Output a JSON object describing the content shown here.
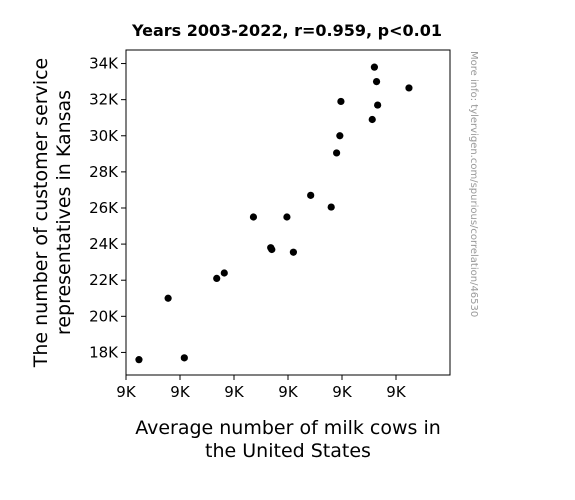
{
  "chart_data": {
    "type": "scatter",
    "title": "Years 2003-2022, r=0.959, p<0.01",
    "xlabel_lines": [
      "Average number of milk cows in",
      "the United States"
    ],
    "ylabel_lines": [
      "The number of customer service",
      "representatives in Kansas"
    ],
    "watermark": "More info: tylervigen.com/spurious/correlation/46530",
    "xlim": [
      9000,
      9300
    ],
    "ylim": [
      16750,
      34750
    ],
    "x_ticks": [
      9000,
      9050,
      9100,
      9150,
      9200,
      9250
    ],
    "x_tick_labels": [
      "9K",
      "9K",
      "9K",
      "9K",
      "9K",
      "9K"
    ],
    "y_ticks": [
      18000,
      20000,
      22000,
      24000,
      26000,
      28000,
      30000,
      32000,
      34000
    ],
    "y_tick_labels": [
      "18K",
      "20K",
      "22K",
      "24K",
      "26K",
      "28K",
      "30K",
      "32K",
      "34K"
    ],
    "marker_color": "#000000",
    "grid": false,
    "x": [
      9012,
      9039,
      9054,
      9084,
      9091,
      9118,
      9134,
      9135,
      9149,
      9155,
      9171,
      9190,
      9195,
      9198,
      9199,
      9228,
      9230,
      9232,
      9233,
      9262
    ],
    "y": [
      17600,
      21000,
      17700,
      22100,
      22400,
      25500,
      23800,
      23700,
      25500,
      23550,
      26700,
      26050,
      29050,
      30000,
      31900,
      30900,
      33800,
      33000,
      31700,
      32650
    ]
  }
}
